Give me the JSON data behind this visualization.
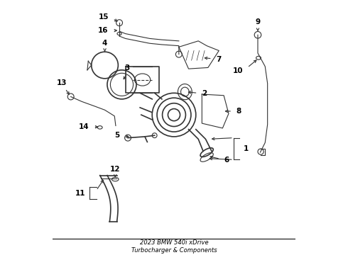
{
  "title": "2023 BMW 540i xDrive\nTurbocharger & Components",
  "background_color": "#ffffff",
  "line_color": "#333333",
  "label_color": "#000000",
  "fig_width": 4.9,
  "fig_height": 3.6,
  "dpi": 100
}
